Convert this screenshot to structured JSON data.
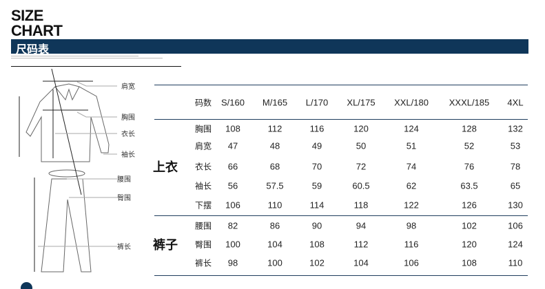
{
  "header": {
    "title_line1": "SIZE",
    "title_line2": "CHART",
    "band_title": "尺码表"
  },
  "illustration": {
    "labels": [
      "肩宽",
      "胸围",
      "衣长",
      "袖长",
      "腰围",
      "臀围",
      "裤长"
    ]
  },
  "table": {
    "corner": "码数",
    "sizes": [
      "S/160",
      "M/165",
      "L/170",
      "XL/175",
      "XXL/180",
      "XXXL/185",
      "4XL"
    ],
    "groups": [
      {
        "name": "上衣",
        "rows": [
          {
            "label": "胸围",
            "values": [
              "108",
              "112",
              "116",
              "120",
              "124",
              "128",
              "132"
            ]
          },
          {
            "label": "肩宽",
            "values": [
              "47",
              "48",
              "49",
              "50",
              "51",
              "52",
              "53"
            ]
          },
          {
            "label": "衣长",
            "values": [
              "66",
              "68",
              "70",
              "72",
              "74",
              "76",
              "78"
            ]
          },
          {
            "label": "袖长",
            "values": [
              "56",
              "57.5",
              "59",
              "60.5",
              "62",
              "63.5",
              "65"
            ]
          },
          {
            "label": "下摆",
            "values": [
              "106",
              "110",
              "114",
              "118",
              "122",
              "126",
              "130"
            ]
          }
        ]
      },
      {
        "name": "裤子",
        "rows": [
          {
            "label": "腰围",
            "values": [
              "82",
              "86",
              "90",
              "94",
              "98",
              "102",
              "106"
            ]
          },
          {
            "label": "臀围",
            "values": [
              "100",
              "104",
              "108",
              "112",
              "116",
              "120",
              "124"
            ]
          },
          {
            "label": "裤长",
            "values": [
              "98",
              "100",
              "102",
              "104",
              "106",
              "108",
              "110"
            ]
          }
        ]
      }
    ]
  },
  "colors": {
    "brand": "#0f3659"
  }
}
